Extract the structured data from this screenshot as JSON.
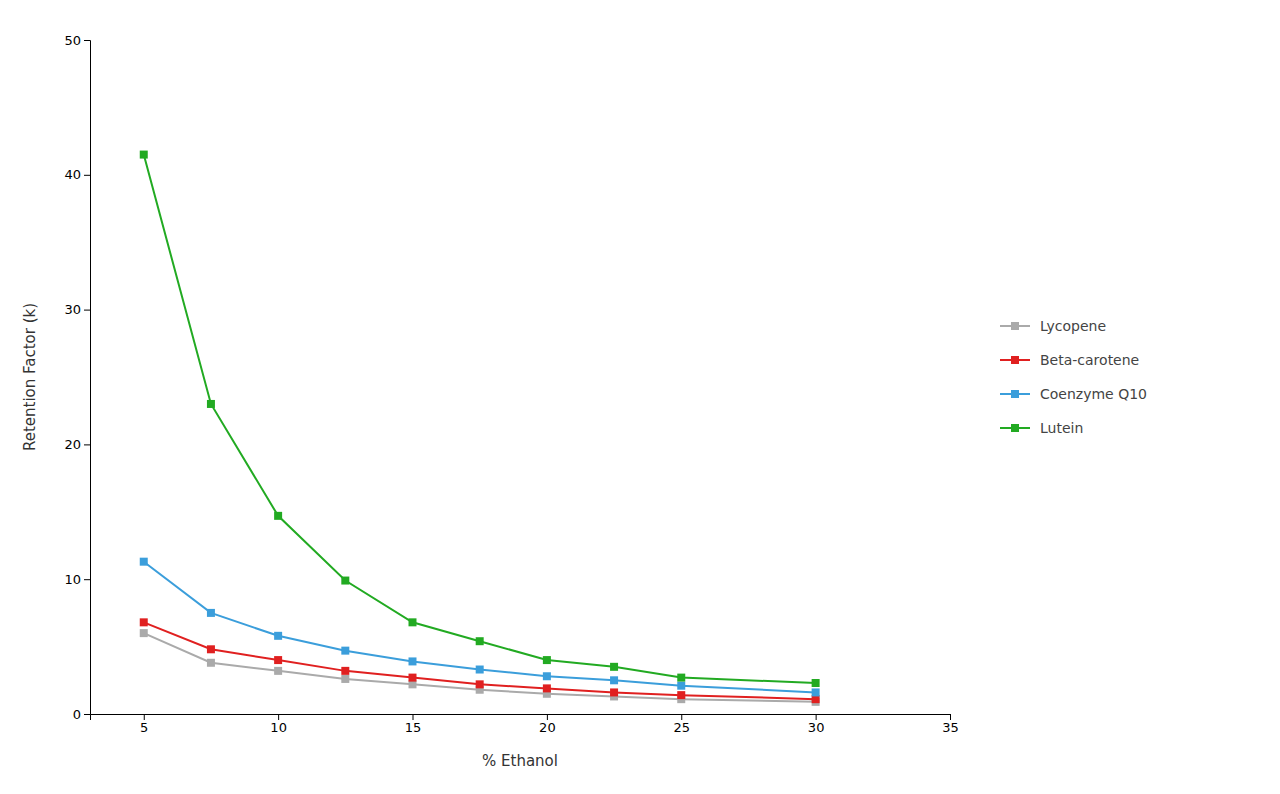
{
  "chart_data": {
    "type": "line",
    "xlabel": "% Ethanol",
    "ylabel": "Retention Factor (k)",
    "x": [
      5,
      7.5,
      10,
      12.5,
      15,
      17.5,
      20,
      22.5,
      25,
      30
    ],
    "series": [
      {
        "name": "Lycopene",
        "color": "#aaaaaa",
        "values": [
          6.0,
          3.8,
          3.2,
          2.6,
          2.2,
          1.8,
          1.5,
          1.3,
          1.1,
          0.9
        ]
      },
      {
        "name": "Beta-carotene",
        "color": "#e02020",
        "values": [
          6.8,
          4.8,
          4.0,
          3.2,
          2.7,
          2.2,
          1.9,
          1.6,
          1.4,
          1.1
        ]
      },
      {
        "name": "Coenzyme Q10",
        "color": "#3b9edb",
        "values": [
          11.3,
          7.5,
          5.8,
          4.7,
          3.9,
          3.3,
          2.8,
          2.5,
          2.1,
          1.6
        ]
      },
      {
        "name": "Lutein",
        "color": "#22aa22",
        "values": [
          41.5,
          23.0,
          14.7,
          9.9,
          6.8,
          5.4,
          4.0,
          3.5,
          2.7,
          2.3
        ]
      }
    ],
    "xlim": [
      3,
      35
    ],
    "ylim": [
      0,
      50
    ],
    "xticks": [
      5,
      10,
      15,
      20,
      25,
      30,
      35
    ],
    "yticks": [
      0,
      10,
      20,
      30,
      40,
      50
    ],
    "marker": "square",
    "grid": false,
    "legend": "right"
  }
}
